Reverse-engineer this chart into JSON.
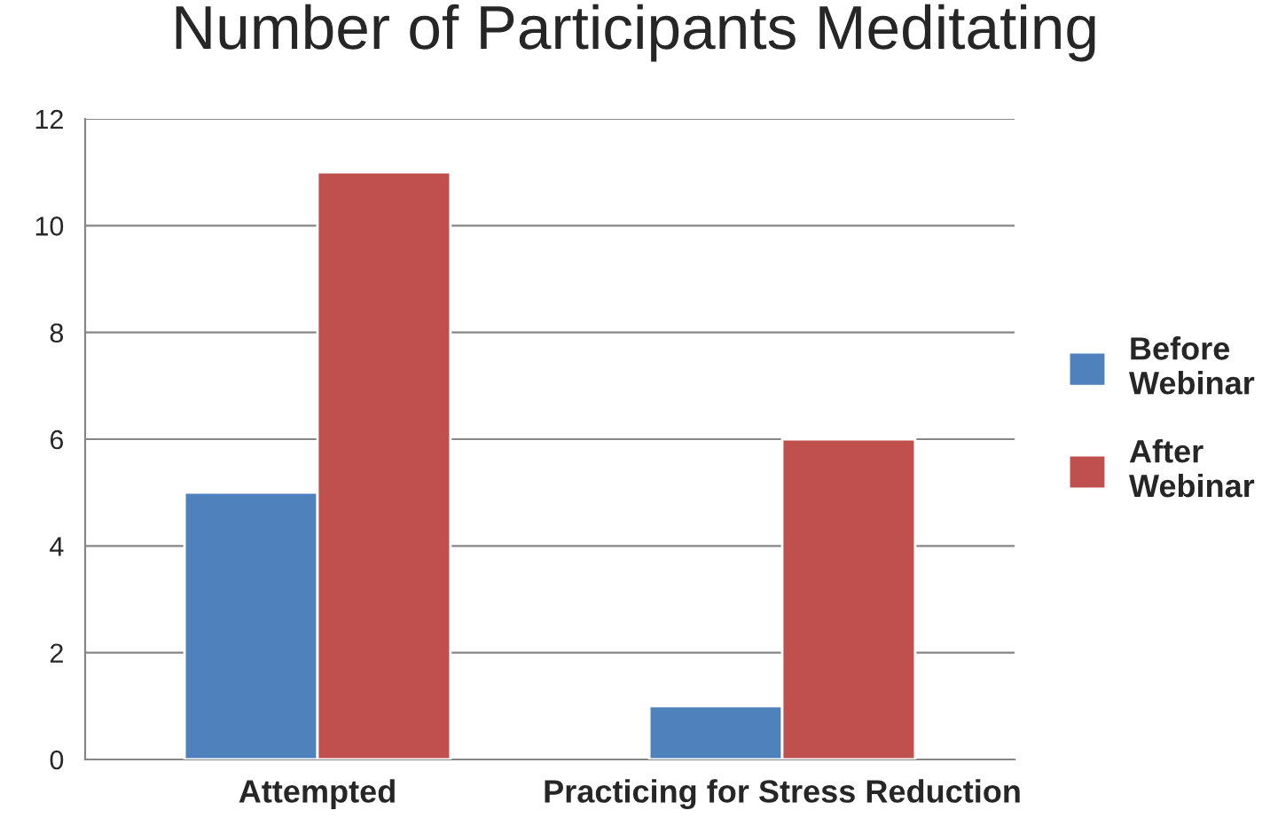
{
  "chart_data": {
    "type": "bar",
    "title": "Number of Participants Meditating",
    "categories": [
      "Attempted",
      "Practicing for Stress Reduction"
    ],
    "series": [
      {
        "name": "Before Webinar",
        "color": "#4f81bd",
        "values": [
          5,
          1
        ]
      },
      {
        "name": "After Webinar",
        "color": "#c0504d",
        "values": [
          11,
          6
        ]
      }
    ],
    "ylim": [
      0,
      12
    ],
    "yticks": [
      0,
      2,
      4,
      6,
      8,
      10,
      12
    ],
    "grid": "y",
    "legend": "right"
  }
}
